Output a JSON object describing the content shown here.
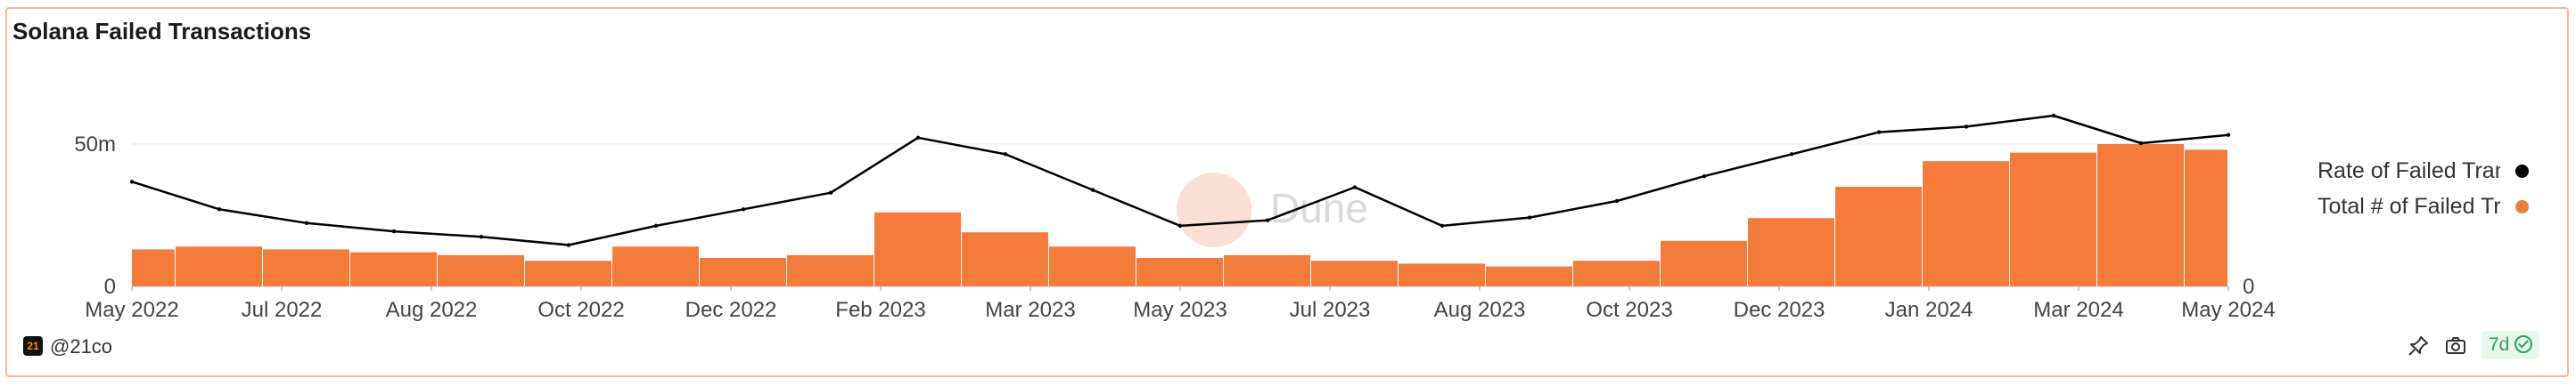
{
  "title": "Solana Failed Transactions",
  "watermark": "Dune",
  "attribution": "@21co",
  "logo_text": "21",
  "refresh_badge": "7d",
  "icons": {
    "refresh": "pin-icon",
    "screenshot": "camera-icon",
    "status": "check-circle-icon"
  },
  "colors": {
    "rate_line": "#000000",
    "total_bars": "#f47b3a",
    "border": "#f5b89a",
    "badge_bg": "#e6f7ec",
    "badge_text": "#2f9e58"
  },
  "chart_data": {
    "type": "bar",
    "x_ticks": [
      "May 2022",
      "Jul 2022",
      "Aug 2022",
      "Oct 2022",
      "Dec 2022",
      "Feb 2023",
      "Mar 2023",
      "May 2023",
      "Jul 2023",
      "Aug 2023",
      "Oct 2023",
      "Dec 2023",
      "Jan 2024",
      "Mar 2024",
      "May 2024"
    ],
    "x_range": [
      "May 2022",
      "May 2024"
    ],
    "y_left_ticks": [
      "0",
      "50m"
    ],
    "y_right_ticks": [
      "0"
    ],
    "ylim_left": [
      0,
      50000000
    ],
    "grid": "horizontal",
    "legend_position": "right",
    "period_months": [
      "May 2022",
      "Jun 2022",
      "Jul 2022",
      "Aug 2022",
      "Sep 2022",
      "Oct 2022",
      "Nov 2022",
      "Dec 2022",
      "Jan 2023",
      "Feb 2023",
      "Mar 2023",
      "Apr 2023",
      "May 2023",
      "Jun 2023",
      "Jul 2023",
      "Aug 2023",
      "Sep 2023",
      "Oct 2023",
      "Nov 2023",
      "Dec 2023",
      "Jan 2024",
      "Feb 2024",
      "Mar 2024",
      "Apr 2024",
      "May 2024"
    ],
    "series": [
      {
        "name": "Total # of Failed Transactions",
        "legend_label": "Total # of Failed Tr",
        "type": "bar",
        "color": "#f47b3a",
        "axis": "left",
        "values": [
          13000000,
          14000000,
          13000000,
          12000000,
          11000000,
          9000000,
          14000000,
          10000000,
          11000000,
          26000000,
          19000000,
          14000000,
          10000000,
          11000000,
          9000000,
          8000000,
          7000000,
          9000000,
          16000000,
          24000000,
          35000000,
          44000000,
          47000000,
          50000000,
          48000000
        ]
      },
      {
        "name": "Rate of Failed Transactions",
        "legend_label": "Rate of Failed Tran",
        "type": "line",
        "color": "#000000",
        "axis": "left-scaled",
        "values": [
          38,
          28,
          23,
          20,
          18,
          15,
          22,
          28,
          34,
          54,
          48,
          35,
          22,
          24,
          36,
          22,
          25,
          31,
          40,
          48,
          56,
          58,
          62,
          52,
          55
        ]
      }
    ]
  }
}
